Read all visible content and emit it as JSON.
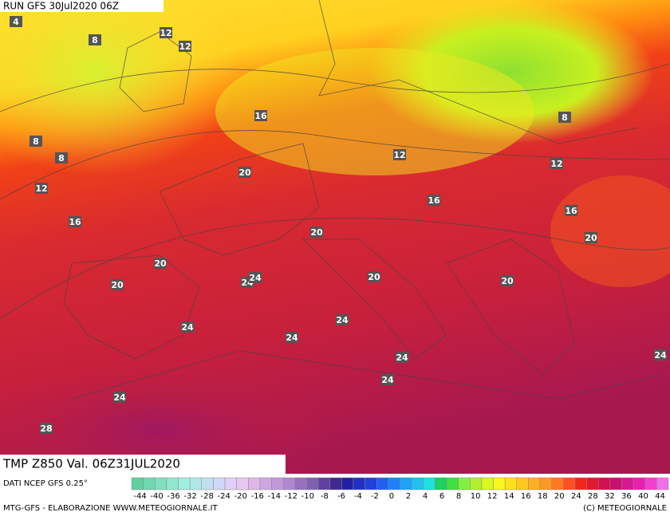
{
  "header": {
    "run": "RUN GFS 30Jul2020 06Z",
    "title": "TMP Z850 Val. 06Z31JUL2020"
  },
  "footer": {
    "source": "DATI NCEP GFS 0.25°",
    "credit": "MTG-GFS - ELABORAZIONE WWW.METEOGIORNALE.IT",
    "copyright": "(C) METEOGIORNALE"
  },
  "scale": {
    "labels": [
      -44,
      -40,
      -36,
      -32,
      -28,
      -24,
      -20,
      -16,
      -14,
      -12,
      -10,
      -8,
      -6,
      -4,
      -2,
      0,
      2,
      4,
      6,
      8,
      10,
      12,
      14,
      16,
      18,
      20,
      24,
      28,
      32,
      36,
      40,
      44
    ]
  },
  "map_labels": [
    4,
    8,
    12,
    12,
    16,
    8,
    8,
    12,
    16,
    20,
    12,
    8,
    12,
    16,
    16,
    20,
    20,
    20,
    20,
    24,
    24,
    20,
    20,
    24,
    24,
    24,
    24,
    24,
    24,
    24,
    28
  ]
}
